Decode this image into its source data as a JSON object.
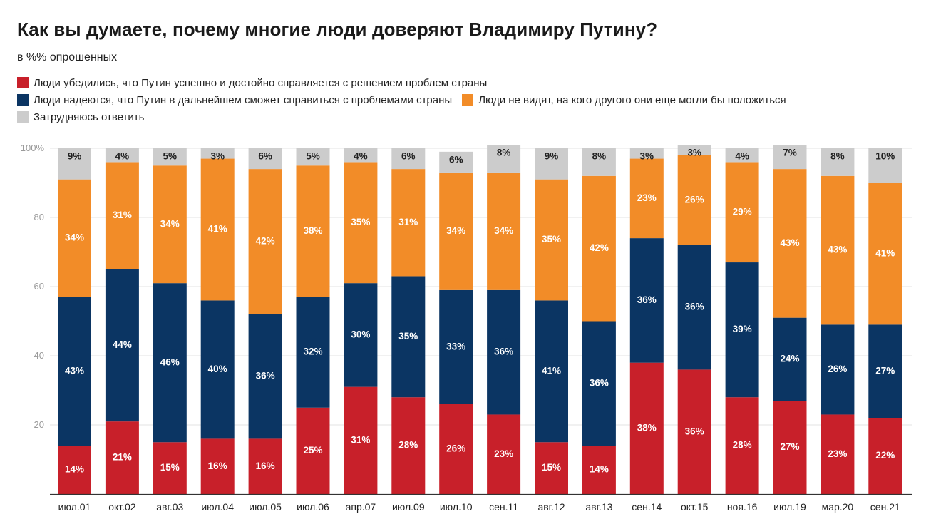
{
  "chart_data": {
    "type": "bar",
    "stacked": true,
    "title": "Как вы думаете, почему многие люди доверяют Владимиру Путину?",
    "subtitle": "в %% опрошенных",
    "ylim": [
      0,
      100
    ],
    "yticks": [
      "100%",
      "80",
      "60",
      "40",
      "20"
    ],
    "ytick_values": [
      100,
      80,
      60,
      40,
      20
    ],
    "grid": true,
    "categories": [
      "июл.01",
      "окт.02",
      "авг.03",
      "июл.04",
      "июл.05",
      "июл.06",
      "апр.07",
      "июл.09",
      "июл.10",
      "сен.11",
      "авг.12",
      "авг.13",
      "сен.14",
      "окт.15",
      "ноя.16",
      "июл.19",
      "мар.20",
      "сен.21"
    ],
    "series": [
      {
        "name": "Люди убедились, что Путин успешно и достойно справляется с решением проблем страны",
        "color": "#c8202a",
        "values": [
          14,
          21,
          15,
          16,
          16,
          25,
          31,
          28,
          26,
          23,
          15,
          14,
          38,
          36,
          28,
          27,
          23,
          22
        ]
      },
      {
        "name": "Люди надеются, что Путин в дальнейшем сможет справиться с проблемами страны",
        "color": "#0b3563",
        "values": [
          43,
          44,
          46,
          40,
          36,
          32,
          30,
          35,
          33,
          36,
          41,
          36,
          36,
          36,
          39,
          24,
          26,
          27
        ]
      },
      {
        "name": "Люди не видят, на кого другого они еще могли бы положиться",
        "color": "#f28c28",
        "values": [
          34,
          31,
          34,
          41,
          42,
          38,
          35,
          31,
          34,
          34,
          35,
          42,
          23,
          26,
          29,
          43,
          43,
          41
        ]
      },
      {
        "name": "Затрудняюсь ответить",
        "color": "#cccccc",
        "values": [
          9,
          4,
          5,
          3,
          6,
          5,
          4,
          6,
          6,
          8,
          9,
          8,
          3,
          3,
          4,
          7,
          8,
          10
        ]
      }
    ]
  }
}
